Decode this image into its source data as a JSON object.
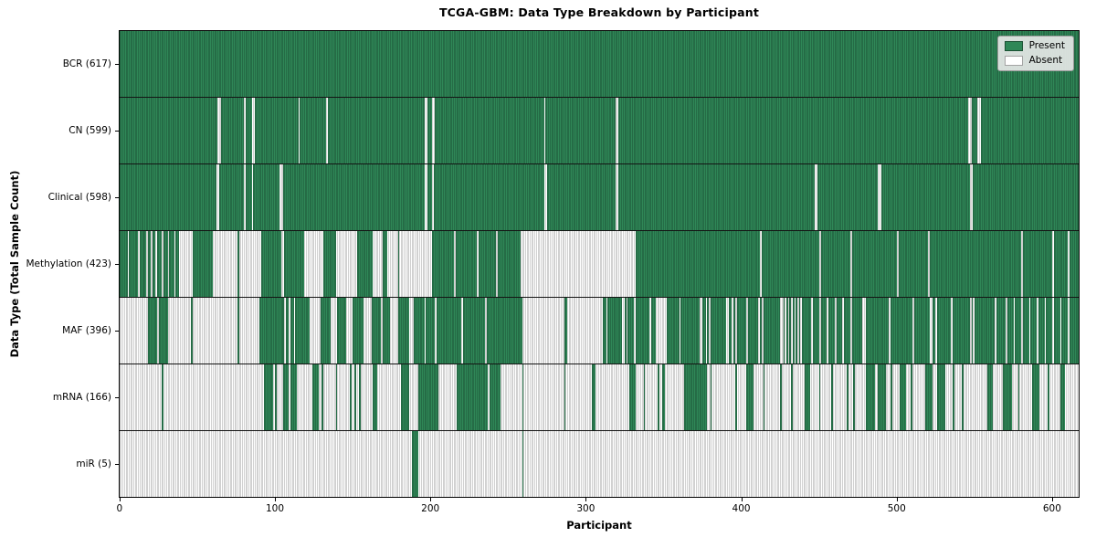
{
  "chart_data": {
    "type": "heatmap",
    "title": "TCGA-GBM: Data Type Breakdown by Participant",
    "xlabel": "Participant",
    "ylabel": "Data Type (Total Sample Count)",
    "legend": {
      "position": "upper right",
      "entries": [
        {
          "label": "Present",
          "value": 1
        },
        {
          "label": "Absent",
          "value": 0
        }
      ]
    },
    "colors": {
      "present": "#2f8757",
      "present_edge": "#1b5134",
      "absent": "#ffffff",
      "absent_edge": "#a3a3a3"
    },
    "n_participants": 617,
    "x_ticks": [
      0,
      100,
      200,
      300,
      400,
      500,
      600
    ],
    "grid": false,
    "rows": [
      {
        "id": "bcr",
        "label": "BCR (617)",
        "data_type": "BCR",
        "present_count": 617,
        "present_runs": [
          [
            0,
            617
          ]
        ]
      },
      {
        "id": "cn",
        "label": "CN (599)",
        "data_type": "CN",
        "present_count": 599,
        "present_runs": [
          [
            0,
            63
          ],
          [
            65,
            15
          ],
          [
            81,
            4
          ],
          [
            87,
            28
          ],
          [
            116,
            17
          ],
          [
            134,
            62
          ],
          [
            198,
            3
          ],
          [
            203,
            70
          ],
          [
            274,
            45
          ],
          [
            321,
            225
          ],
          [
            548,
            4
          ],
          [
            554,
            63
          ]
        ]
      },
      {
        "id": "clinical",
        "label": "Clinical (598)",
        "data_type": "Clinical",
        "present_count": 598,
        "present_runs": [
          [
            0,
            62
          ],
          [
            64,
            16
          ],
          [
            81,
            4
          ],
          [
            86,
            17
          ],
          [
            105,
            91
          ],
          [
            198,
            3
          ],
          [
            202,
            71
          ],
          [
            275,
            44
          ],
          [
            321,
            126
          ],
          [
            449,
            39
          ],
          [
            490,
            57
          ],
          [
            549,
            68
          ]
        ]
      },
      {
        "id": "methylation",
        "label": "Methylation (423)",
        "data_type": "Methylation",
        "present_count": 423,
        "present_runs": [
          [
            0,
            5
          ],
          [
            6,
            6
          ],
          [
            13,
            2
          ],
          [
            15,
            2
          ],
          [
            18,
            2
          ],
          [
            21,
            2
          ],
          [
            24,
            3
          ],
          [
            28,
            3
          ],
          [
            32,
            3
          ],
          [
            36,
            2
          ],
          [
            47,
            13
          ],
          [
            76,
            1
          ],
          [
            91,
            13
          ],
          [
            106,
            13
          ],
          [
            131,
            8
          ],
          [
            153,
            10
          ],
          [
            169,
            3
          ],
          [
            179,
            1
          ],
          [
            201,
            14
          ],
          [
            216,
            14
          ],
          [
            231,
            11
          ],
          [
            243,
            15
          ],
          [
            332,
            80
          ],
          [
            413,
            37
          ],
          [
            451,
            19
          ],
          [
            471,
            29
          ],
          [
            501,
            19
          ],
          [
            521,
            59
          ],
          [
            581,
            19
          ],
          [
            601,
            9
          ],
          [
            611,
            6
          ]
        ]
      },
      {
        "id": "maf",
        "label": "MAF (396)",
        "data_type": "MAF",
        "present_count": 396,
        "present_runs": [
          [
            18,
            6
          ],
          [
            25,
            6
          ],
          [
            46,
            1
          ],
          [
            76,
            1
          ],
          [
            90,
            15
          ],
          [
            105,
            1
          ],
          [
            107,
            2
          ],
          [
            110,
            2
          ],
          [
            113,
            9
          ],
          [
            129,
            7
          ],
          [
            140,
            6
          ],
          [
            150,
            7
          ],
          [
            162,
            6
          ],
          [
            169,
            5
          ],
          [
            179,
            7
          ],
          [
            189,
            7
          ],
          [
            197,
            6
          ],
          [
            204,
            6
          ],
          [
            210,
            10
          ],
          [
            221,
            14
          ],
          [
            236,
            23
          ],
          [
            286,
            2
          ],
          [
            311,
            2
          ],
          [
            314,
            9
          ],
          [
            325,
            1
          ],
          [
            327,
            4
          ],
          [
            332,
            9
          ],
          [
            342,
            3
          ],
          [
            352,
            8
          ],
          [
            361,
            12
          ],
          [
            375,
            2
          ],
          [
            378,
            1
          ],
          [
            380,
            10
          ],
          [
            392,
            2
          ],
          [
            395,
            1
          ],
          [
            397,
            6
          ],
          [
            404,
            6
          ],
          [
            410,
            1
          ],
          [
            412,
            1
          ],
          [
            414,
            11
          ],
          [
            427,
            1
          ],
          [
            429,
            1
          ],
          [
            431,
            1
          ],
          [
            433,
            1
          ],
          [
            435,
            1
          ],
          [
            437,
            1
          ],
          [
            439,
            6
          ],
          [
            446,
            4
          ],
          [
            451,
            4
          ],
          [
            456,
            4
          ],
          [
            461,
            4
          ],
          [
            466,
            4
          ],
          [
            471,
            6
          ],
          [
            477,
            1
          ],
          [
            480,
            15
          ],
          [
            496,
            14
          ],
          [
            511,
            10
          ],
          [
            523,
            2
          ],
          [
            526,
            9
          ],
          [
            536,
            10
          ],
          [
            546,
            1
          ],
          [
            548,
            1
          ],
          [
            550,
            12
          ],
          [
            562,
            1
          ],
          [
            564,
            6
          ],
          [
            571,
            4
          ],
          [
            576,
            4
          ],
          [
            581,
            4
          ],
          [
            586,
            4
          ],
          [
            591,
            4
          ],
          [
            596,
            4
          ],
          [
            601,
            4
          ],
          [
            606,
            4
          ],
          [
            611,
            6
          ]
        ]
      },
      {
        "id": "mrna",
        "label": "mRNA (166)",
        "data_type": "mRNA",
        "present_count": 166,
        "present_runs": [
          [
            27,
            1
          ],
          [
            93,
            6
          ],
          [
            100,
            1
          ],
          [
            105,
            4
          ],
          [
            110,
            4
          ],
          [
            124,
            4
          ],
          [
            130,
            1
          ],
          [
            139,
            1
          ],
          [
            148,
            1
          ],
          [
            151,
            1
          ],
          [
            154,
            1
          ],
          [
            163,
            3
          ],
          [
            181,
            5
          ],
          [
            192,
            12
          ],
          [
            204,
            1
          ],
          [
            217,
            20
          ],
          [
            238,
            7
          ],
          [
            259,
            1
          ],
          [
            286,
            1
          ],
          [
            304,
            2
          ],
          [
            328,
            4
          ],
          [
            337,
            1
          ],
          [
            346,
            1
          ],
          [
            349,
            2
          ],
          [
            363,
            10
          ],
          [
            373,
            5
          ],
          [
            380,
            1
          ],
          [
            396,
            1
          ],
          [
            403,
            5
          ],
          [
            414,
            1
          ],
          [
            425,
            1
          ],
          [
            432,
            1
          ],
          [
            441,
            3
          ],
          [
            450,
            1
          ],
          [
            458,
            1
          ],
          [
            468,
            1
          ],
          [
            472,
            1
          ],
          [
            480,
            6
          ],
          [
            488,
            5
          ],
          [
            496,
            1
          ],
          [
            502,
            4
          ],
          [
            509,
            1
          ],
          [
            518,
            5
          ],
          [
            526,
            5
          ],
          [
            536,
            1
          ],
          [
            542,
            1
          ],
          [
            558,
            4
          ],
          [
            568,
            6
          ],
          [
            578,
            1
          ],
          [
            587,
            5
          ],
          [
            597,
            1
          ],
          [
            605,
            3
          ]
        ]
      },
      {
        "id": "mir",
        "label": "miR (5)",
        "data_type": "miR",
        "present_count": 5,
        "present_runs": [
          [
            188,
            4
          ],
          [
            259,
            1
          ]
        ]
      }
    ]
  }
}
